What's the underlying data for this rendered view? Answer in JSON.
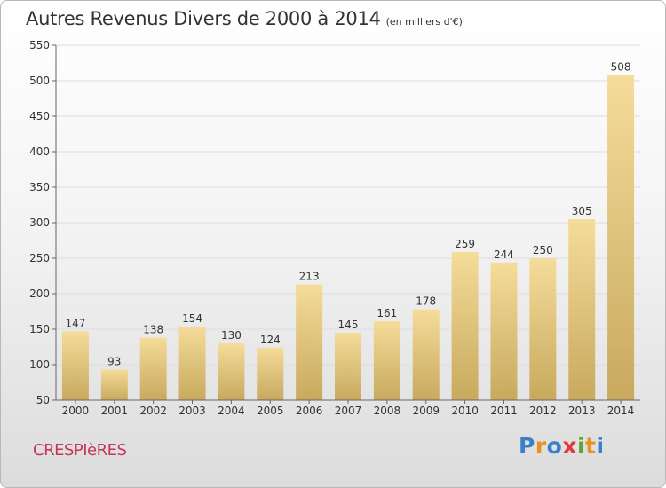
{
  "header": {
    "title": "Autres Revenus Divers de 2000 à 2014",
    "unit": "(en milliers d'€)"
  },
  "footer": {
    "commune": "CRESPIèRES",
    "logo_letters": [
      "P",
      "r",
      "o",
      "x",
      "i",
      "t",
      "i"
    ],
    "logo_colors": [
      "#3a7fc8",
      "#e8931e",
      "#3a7fc8",
      "#e23a3a",
      "#5aa83a",
      "#e8931e",
      "#3a7fc8"
    ]
  },
  "colors": {
    "bar_top": "#f5dc9a",
    "bar_bottom": "#c8a95e",
    "grid": "#dddddd",
    "axis": "#666666"
  },
  "chart_data": {
    "type": "bar",
    "title": "Autres Revenus Divers de 2000 à 2014",
    "subtitle": "(en milliers d'€)",
    "xlabel": "",
    "ylabel": "",
    "categories": [
      "2000",
      "2001",
      "2002",
      "2003",
      "2004",
      "2005",
      "2006",
      "2007",
      "2008",
      "2009",
      "2010",
      "2011",
      "2012",
      "2013",
      "2014"
    ],
    "values": [
      147,
      93,
      138,
      154,
      130,
      124,
      213,
      145,
      161,
      178,
      259,
      244,
      250,
      305,
      508
    ],
    "ylim": [
      50,
      550
    ],
    "yticks": [
      50,
      100,
      150,
      200,
      250,
      300,
      350,
      400,
      450,
      500,
      550
    ],
    "grid": true,
    "legend": "none"
  }
}
